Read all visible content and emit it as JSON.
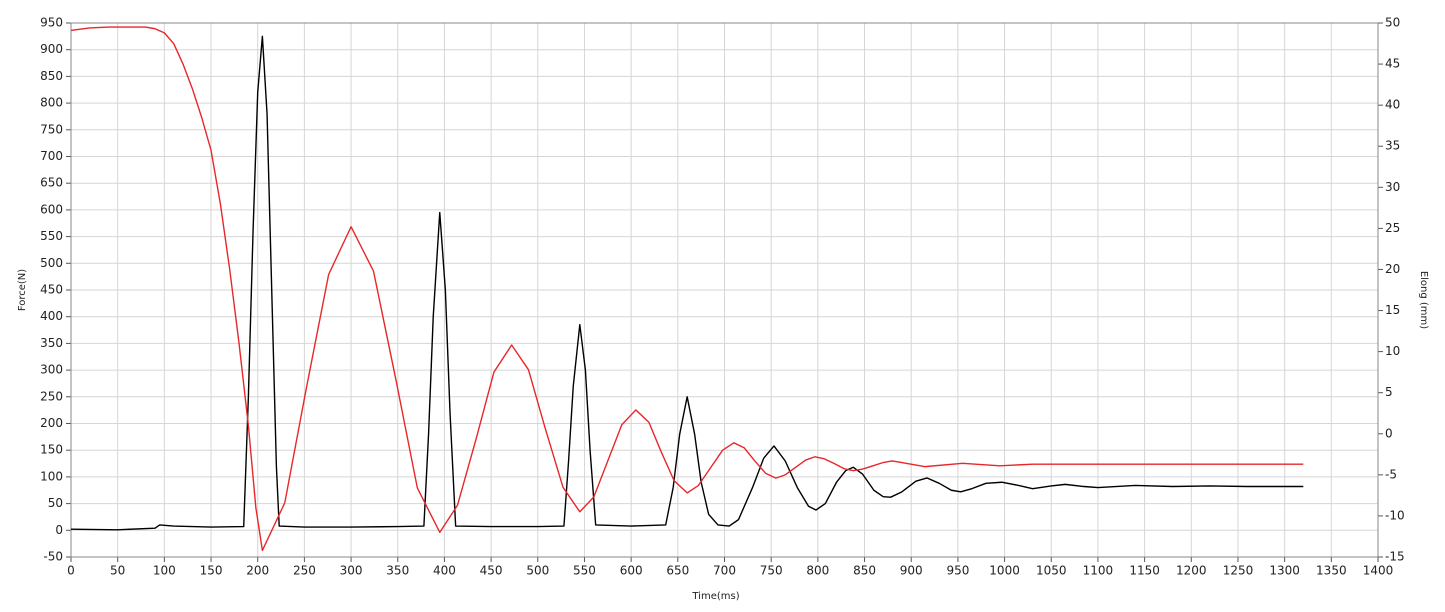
{
  "chart_data": {
    "type": "line",
    "x_label": "Time(ms)",
    "y_label": "Force(N)",
    "y2_label": "Elong (mm)",
    "xlim": [
      0,
      1400
    ],
    "xticks": [
      0,
      50,
      100,
      150,
      200,
      250,
      300,
      350,
      400,
      450,
      500,
      550,
      600,
      650,
      700,
      750,
      800,
      850,
      900,
      950,
      1000,
      1050,
      1100,
      1150,
      1200,
      1250,
      1300,
      1350,
      1400
    ],
    "ylim": [
      -50,
      950
    ],
    "yticks": [
      -50,
      0,
      50,
      100,
      150,
      200,
      250,
      300,
      350,
      400,
      450,
      500,
      550,
      600,
      650,
      700,
      750,
      800,
      850,
      900,
      950
    ],
    "y2lim": [
      -15,
      50
    ],
    "y2ticks": [
      -15,
      -10,
      -5,
      0,
      5,
      10,
      15,
      20,
      25,
      30,
      35,
      40,
      45,
      50
    ],
    "grid": true,
    "series": [
      {
        "name": "Force",
        "color": "#000000",
        "axis": "y",
        "x": [
          0,
          50,
          90,
          95,
          110,
          150,
          185,
          190,
          195,
          200,
          205,
          210,
          215,
          220,
          223,
          250,
          300,
          350,
          378,
          383,
          388,
          395,
          401,
          406,
          412,
          450,
          500,
          528,
          533,
          538,
          545,
          551,
          556,
          562,
          600,
          637,
          645,
          652,
          660,
          668,
          675,
          683,
          693,
          705,
          715,
          730,
          742,
          753,
          765,
          778,
          790,
          798,
          808,
          820,
          830,
          838,
          848,
          860,
          870,
          878,
          890,
          905,
          917,
          930,
          943,
          953,
          965,
          980,
          997,
          1015,
          1030,
          1050,
          1065,
          1085,
          1100,
          1140,
          1180,
          1220,
          1260,
          1320
        ],
        "values": [
          2,
          1,
          4,
          10,
          8,
          6,
          7,
          250,
          560,
          820,
          925,
          780,
          450,
          120,
          8,
          6,
          6,
          7,
          8,
          180,
          400,
          595,
          450,
          220,
          8,
          7,
          7,
          8,
          130,
          270,
          385,
          300,
          150,
          10,
          8,
          10,
          80,
          180,
          250,
          180,
          90,
          30,
          10,
          8,
          20,
          80,
          135,
          158,
          130,
          80,
          45,
          38,
          50,
          90,
          112,
          118,
          105,
          75,
          63,
          62,
          72,
          92,
          98,
          88,
          75,
          72,
          78,
          88,
          90,
          84,
          78,
          83,
          86,
          82,
          80,
          84,
          82,
          83,
          82,
          82
        ]
      },
      {
        "name": "Elong",
        "color": "#e8272a",
        "axis": "y2",
        "x": [
          0,
          20,
          40,
          60,
          80,
          90,
          100,
          110,
          120,
          130,
          140,
          150,
          160,
          170,
          180,
          190,
          198,
          205,
          229,
          252,
          276,
          300,
          324,
          348,
          371,
          395,
          414,
          434,
          453,
          472,
          490,
          508,
          527,
          545,
          560,
          575,
          590,
          605,
          619,
          632,
          646,
          660,
          672,
          685,
          698,
          710,
          721,
          732,
          744,
          755,
          765,
          776,
          787,
          797,
          807,
          818,
          828,
          838,
          848,
          859,
          870,
          880,
          915,
          955,
          995,
          1030,
          1320
        ],
        "values": [
          49.1,
          49.4,
          49.5,
          49.5,
          49.5,
          49.3,
          48.8,
          47.5,
          45,
          42,
          38.5,
          34.5,
          28,
          20,
          11,
          1,
          -9,
          -14.2,
          -8.4,
          5.5,
          19.4,
          25.2,
          19.8,
          6.6,
          -6.6,
          -12,
          -8.7,
          -0.6,
          7.5,
          10.8,
          7.8,
          0.65,
          -6.5,
          -9.5,
          -7.7,
          -3.3,
          1.1,
          2.9,
          1.4,
          -2.15,
          -5.7,
          -7.2,
          -6.3,
          -4.15,
          -2,
          -1.1,
          -1.7,
          -3.25,
          -4.8,
          -5.4,
          -5,
          -4.1,
          -3.2,
          -2.8,
          -3.05,
          -3.65,
          -4.25,
          -4.5,
          -4.3,
          -3.9,
          -3.5,
          -3.3,
          -4,
          -3.6,
          -3.9,
          -3.7,
          -3.7
        ]
      }
    ]
  }
}
